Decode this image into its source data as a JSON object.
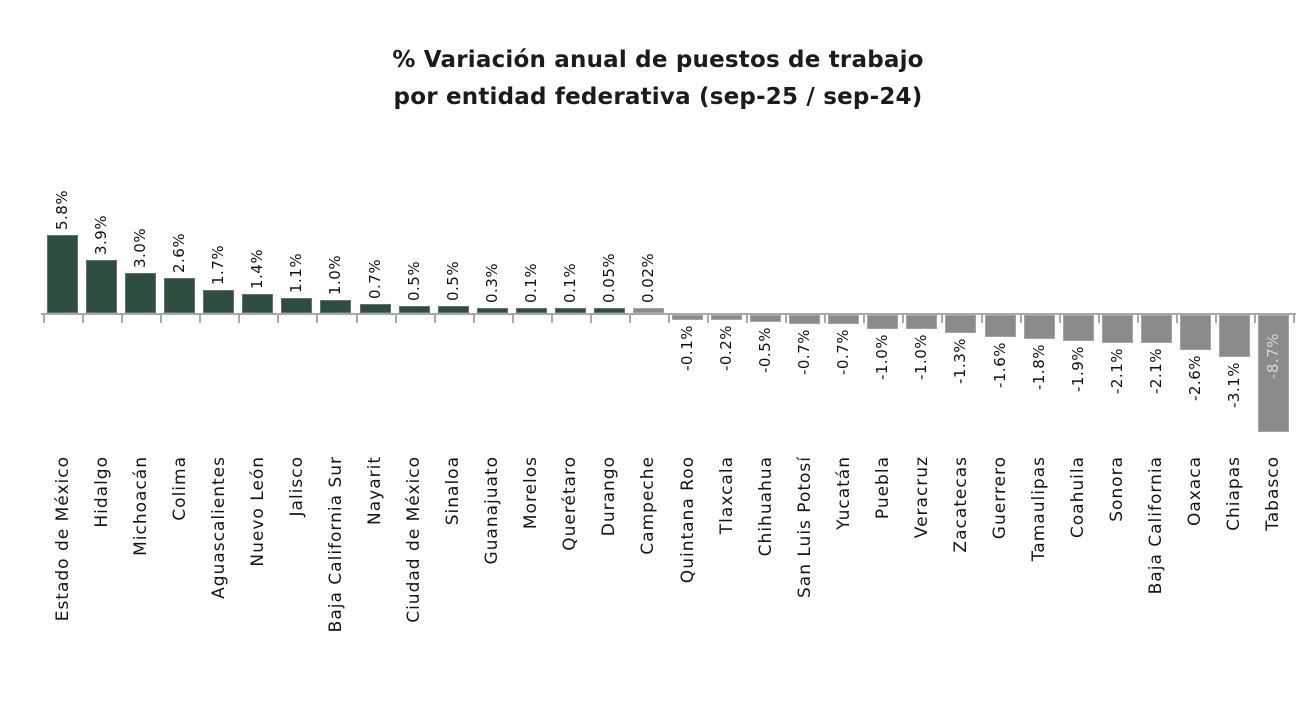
{
  "title": {
    "line1": "% Variación anual de puestos de trabajo",
    "line2": "por entidad federativa (sep-25 / sep-24)"
  },
  "colors": {
    "positive_bar": "#2e4f40",
    "negative_bar": "#8b8b8b",
    "axis": "#a9a9a9",
    "value_label": "#111111",
    "category_label": "#141414",
    "inside_bar_label": "#d6d6d6",
    "title_text": "#1b1b1b",
    "background": "#ffffff"
  },
  "chart_data": {
    "type": "bar",
    "title": "% Variación anual de puestos de trabajo por entidad federativa (sep-25 / sep-24)",
    "xlabel": "",
    "ylabel": "",
    "ylim": [
      -9,
      6.5
    ],
    "grid": false,
    "legend": false,
    "value_label_rotation_deg": 90,
    "category_label_rotation_deg": 90,
    "inside_value_label_index": 31,
    "categories": [
      "Estado de México",
      "Hidalgo",
      "Michoacán",
      "Colima",
      "Aguascalientes",
      "Nuevo León",
      "Jalisco",
      "Baja California Sur",
      "Nayarit",
      "Ciudad de México",
      "Sinaloa",
      "Guanajuato",
      "Morelos",
      "Querétaro",
      "Durango",
      "Campeche",
      "Quintana Roo",
      "Tlaxcala",
      "Chihuahua",
      "San Luis Potosí",
      "Yucatán",
      "Puebla",
      "Veracruz",
      "Zacatecas",
      "Guerrero",
      "Tamaulipas",
      "Coahuila",
      "Sonora",
      "Baja California",
      "Oaxaca",
      "Chiapas",
      "Tabasco"
    ],
    "values": [
      5.8,
      3.9,
      3.0,
      2.6,
      1.7,
      1.4,
      1.1,
      1.0,
      0.7,
      0.5,
      0.5,
      0.3,
      0.1,
      0.1,
      0.05,
      0.02,
      -0.1,
      -0.2,
      -0.5,
      -0.7,
      -0.7,
      -1.0,
      -1.0,
      -1.3,
      -1.6,
      -1.8,
      -1.9,
      -2.1,
      -2.1,
      -2.6,
      -3.1,
      -8.7
    ],
    "value_labels": [
      "5.8%",
      "3.9%",
      "3.0%",
      "2.6%",
      "1.7%",
      "1.4%",
      "1.1%",
      "1.0%",
      "0.7%",
      "0.5%",
      "0.5%",
      "0.3%",
      "0.1%",
      "0.1%",
      "0.05%",
      "0.02%",
      "-0.1%",
      "-0.2%",
      "-0.5%",
      "-0.7%",
      "-0.7%",
      "-1.0%",
      "-1.0%",
      "-1.3%",
      "-1.6%",
      "-1.8%",
      "-1.9%",
      "-2.1%",
      "-2.1%",
      "-2.6%",
      "-3.1%",
      "-8.7%"
    ],
    "color_keys": [
      "green",
      "green",
      "green",
      "green",
      "green",
      "green",
      "green",
      "green",
      "green",
      "green",
      "green",
      "green",
      "green",
      "green",
      "green",
      "gray",
      "gray",
      "gray",
      "gray",
      "gray",
      "gray",
      "gray",
      "gray",
      "gray",
      "gray",
      "gray",
      "gray",
      "gray",
      "gray",
      "gray",
      "gray",
      "gray"
    ]
  }
}
